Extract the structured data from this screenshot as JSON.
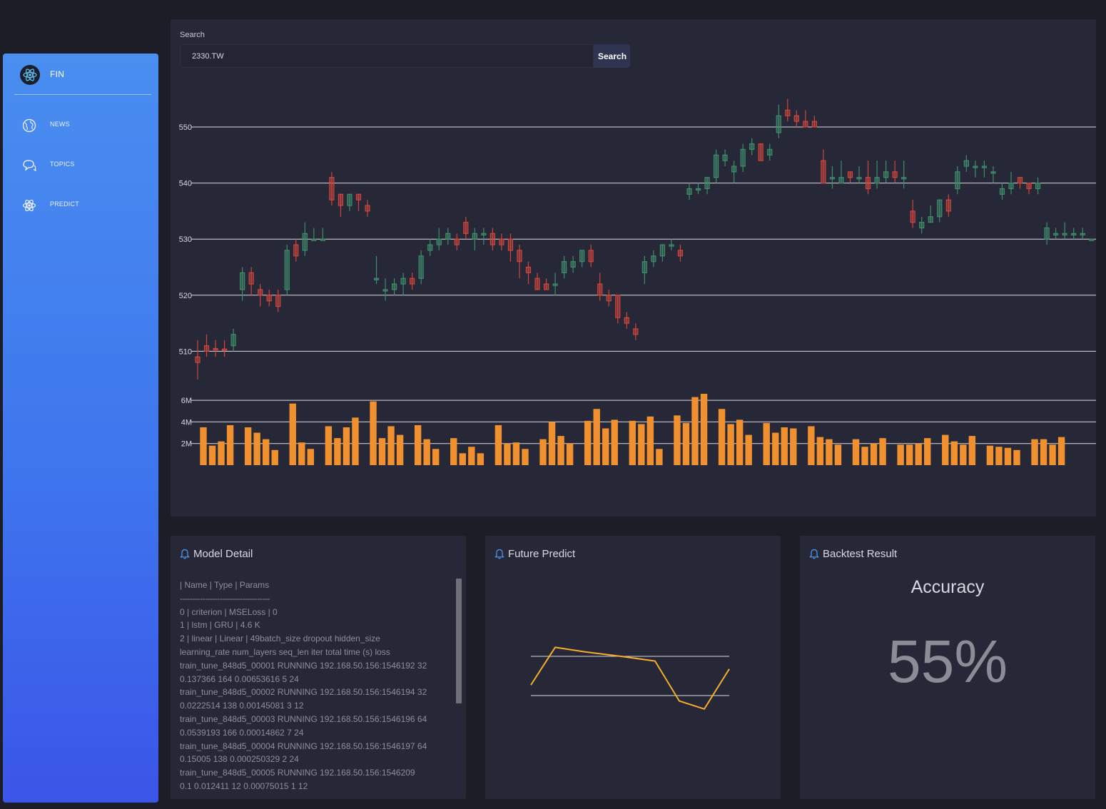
{
  "sidebar": {
    "brand": "FIN",
    "brand_icon": "react-atom-icon",
    "items": [
      {
        "label": "NEWS",
        "icon": "globe-icon"
      },
      {
        "label": "TOPICS",
        "icon": "chat-bubbles-icon"
      },
      {
        "label": "PREDICT",
        "icon": "atom-icon"
      }
    ]
  },
  "search": {
    "label": "Search",
    "value": "2330.TW",
    "button_label": "Search"
  },
  "colors": {
    "up": "#3f8c6a",
    "down": "#d0453c",
    "volume": "#f0902e",
    "predict_line": "#f4ad2c",
    "sidebar_top": "#4a8ef0",
    "sidebar_bottom": "#3b55e8"
  },
  "chart_data": [
    {
      "type": "candlestick",
      "price_ticks": [
        510,
        520,
        530,
        540,
        550
      ],
      "volume_ticks": [
        "2M",
        "4M",
        "6M"
      ],
      "volume_tick_values": [
        2000000,
        4000000,
        6000000
      ],
      "candles": [
        {
          "o": 509,
          "c": 508,
          "h": 512,
          "l": 505
        },
        {
          "o": 511,
          "c": 510,
          "h": 513,
          "l": 509
        },
        {
          "o": 510.5,
          "c": 510.3,
          "h": 512,
          "l": 509
        },
        {
          "o": 510.4,
          "c": 510.3,
          "h": 512,
          "l": 509
        },
        {
          "o": 511,
          "c": 513,
          "h": 514,
          "l": 510
        },
        {
          "o": 521,
          "c": 524,
          "h": 525,
          "l": 519
        },
        {
          "o": 524,
          "c": 522,
          "h": 525,
          "l": 520
        },
        {
          "o": 521,
          "c": 520,
          "h": 522,
          "l": 518
        },
        {
          "o": 520,
          "c": 519,
          "h": 521,
          "l": 518
        },
        {
          "o": 520,
          "c": 518,
          "h": 521,
          "l": 517
        },
        {
          "o": 521,
          "c": 528,
          "h": 529,
          "l": 520
        },
        {
          "o": 529,
          "c": 527,
          "h": 530,
          "l": 526
        },
        {
          "o": 528,
          "c": 531,
          "h": 533,
          "l": 527
        },
        {
          "o": 530,
          "c": 530,
          "h": 532,
          "l": 530
        },
        {
          "o": 530,
          "c": 530,
          "h": 532,
          "l": 530
        },
        {
          "o": 541,
          "c": 537,
          "h": 542,
          "l": 536
        },
        {
          "o": 538,
          "c": 536,
          "h": 538,
          "l": 534
        },
        {
          "o": 536,
          "c": 538,
          "h": 538,
          "l": 535
        },
        {
          "o": 538,
          "c": 537,
          "h": 538,
          "l": 535
        },
        {
          "o": 536,
          "c": 535,
          "h": 537,
          "l": 534
        },
        {
          "o": 523,
          "c": 523,
          "h": 527,
          "l": 522
        },
        {
          "o": 521,
          "c": 521,
          "h": 523,
          "l": 519
        },
        {
          "o": 521,
          "c": 522,
          "h": 523,
          "l": 520
        },
        {
          "o": 522,
          "c": 523,
          "h": 524,
          "l": 520
        },
        {
          "o": 523,
          "c": 522,
          "h": 524,
          "l": 521
        },
        {
          "o": 523,
          "c": 527,
          "h": 528,
          "l": 522
        },
        {
          "o": 528,
          "c": 529,
          "h": 530,
          "l": 527
        },
        {
          "o": 529,
          "c": 530,
          "h": 532,
          "l": 528
        },
        {
          "o": 530,
          "c": 531,
          "h": 532,
          "l": 529
        },
        {
          "o": 530,
          "c": 529,
          "h": 531,
          "l": 528
        },
        {
          "o": 533,
          "c": 531,
          "h": 534,
          "l": 530
        },
        {
          "o": 530,
          "c": 531,
          "h": 532,
          "l": 528
        },
        {
          "o": 531,
          "c": 531,
          "h": 532,
          "l": 529
        },
        {
          "o": 531,
          "c": 529,
          "h": 532,
          "l": 528
        },
        {
          "o": 530,
          "c": 529,
          "h": 531,
          "l": 528
        },
        {
          "o": 530,
          "c": 528,
          "h": 531,
          "l": 526
        },
        {
          "o": 528,
          "c": 526,
          "h": 529,
          "l": 523
        },
        {
          "o": 525,
          "c": 524,
          "h": 526,
          "l": 522
        },
        {
          "o": 523,
          "c": 521,
          "h": 524,
          "l": 521
        },
        {
          "o": 522,
          "c": 521,
          "h": 523,
          "l": 521
        },
        {
          "o": 522,
          "c": 522,
          "h": 524,
          "l": 520
        },
        {
          "o": 524,
          "c": 526,
          "h": 527,
          "l": 523
        },
        {
          "o": 525,
          "c": 526,
          "h": 527,
          "l": 524
        },
        {
          "o": 526,
          "c": 528,
          "h": 528,
          "l": 525
        },
        {
          "o": 528,
          "c": 526,
          "h": 529,
          "l": 525
        },
        {
          "o": 522,
          "c": 520,
          "h": 524,
          "l": 519
        },
        {
          "o": 520,
          "c": 519,
          "h": 521,
          "l": 518
        },
        {
          "o": 520,
          "c": 516,
          "h": 520,
          "l": 515
        },
        {
          "o": 516,
          "c": 515,
          "h": 517,
          "l": 514
        },
        {
          "o": 514,
          "c": 513,
          "h": 515,
          "l": 512
        },
        {
          "o": 524,
          "c": 526,
          "h": 527,
          "l": 522
        },
        {
          "o": 526,
          "c": 527,
          "h": 528,
          "l": 525
        },
        {
          "o": 527,
          "c": 529,
          "h": 529,
          "l": 526
        },
        {
          "o": 529,
          "c": 529,
          "h": 530,
          "l": 528
        },
        {
          "o": 528,
          "c": 527,
          "h": 529,
          "l": 526
        },
        {
          "o": 538,
          "c": 539,
          "h": 540,
          "l": 537
        },
        {
          "o": 539,
          "c": 539,
          "h": 540,
          "l": 538
        },
        {
          "o": 539,
          "c": 541,
          "h": 541,
          "l": 538
        },
        {
          "o": 541,
          "c": 545,
          "h": 546,
          "l": 540
        },
        {
          "o": 544,
          "c": 545,
          "h": 546,
          "l": 543
        },
        {
          "o": 542,
          "c": 543,
          "h": 544,
          "l": 540
        },
        {
          "o": 543,
          "c": 546,
          "h": 547,
          "l": 542
        },
        {
          "o": 546,
          "c": 547,
          "h": 548,
          "l": 545
        },
        {
          "o": 547,
          "c": 544,
          "h": 547,
          "l": 544
        },
        {
          "o": 545,
          "c": 546,
          "h": 547,
          "l": 544
        },
        {
          "o": 549,
          "c": 552,
          "h": 554,
          "l": 548
        },
        {
          "o": 553,
          "c": 552,
          "h": 555,
          "l": 551
        },
        {
          "o": 552,
          "c": 551,
          "h": 553,
          "l": 550
        },
        {
          "o": 551,
          "c": 550,
          "h": 553,
          "l": 550
        },
        {
          "o": 551,
          "c": 550,
          "h": 552,
          "l": 550
        },
        {
          "o": 544,
          "c": 540,
          "h": 546,
          "l": 540
        },
        {
          "o": 541,
          "c": 541,
          "h": 543,
          "l": 539
        },
        {
          "o": 540,
          "c": 541,
          "h": 544,
          "l": 540
        },
        {
          "o": 542,
          "c": 541,
          "h": 542,
          "l": 540
        },
        {
          "o": 541,
          "c": 541,
          "h": 543,
          "l": 540
        },
        {
          "o": 541,
          "c": 539,
          "h": 544,
          "l": 538
        },
        {
          "o": 540,
          "c": 541,
          "h": 544,
          "l": 539
        },
        {
          "o": 541,
          "c": 542,
          "h": 544,
          "l": 540
        },
        {
          "o": 542,
          "c": 541,
          "h": 544,
          "l": 540
        },
        {
          "o": 541,
          "c": 541,
          "h": 544,
          "l": 539
        },
        {
          "o": 535,
          "c": 533,
          "h": 537,
          "l": 532
        },
        {
          "o": 532,
          "c": 533,
          "h": 534,
          "l": 531
        },
        {
          "o": 533,
          "c": 534,
          "h": 536,
          "l": 533
        },
        {
          "o": 534,
          "c": 537,
          "h": 537,
          "l": 533
        },
        {
          "o": 537,
          "c": 535,
          "h": 538,
          "l": 534
        },
        {
          "o": 539,
          "c": 542,
          "h": 543,
          "l": 538
        },
        {
          "o": 543,
          "c": 544,
          "h": 545,
          "l": 542
        },
        {
          "o": 543,
          "c": 543,
          "h": 544,
          "l": 541
        },
        {
          "o": 543,
          "c": 543,
          "h": 544,
          "l": 541
        },
        {
          "o": 542,
          "c": 542,
          "h": 543,
          "l": 540
        },
        {
          "o": 538,
          "c": 539,
          "h": 540,
          "l": 537
        },
        {
          "o": 539,
          "c": 540,
          "h": 542,
          "l": 538
        },
        {
          "o": 541,
          "c": 540,
          "h": 541,
          "l": 539
        },
        {
          "o": 540,
          "c": 539,
          "h": 540,
          "l": 538
        },
        {
          "o": 539,
          "c": 540,
          "h": 541,
          "l": 538
        },
        {
          "o": 530,
          "c": 532,
          "h": 533,
          "l": 529
        },
        {
          "o": 531,
          "c": 531,
          "h": 532,
          "l": 530
        },
        {
          "o": 531,
          "c": 531,
          "h": 533,
          "l": 530
        },
        {
          "o": 531,
          "c": 531,
          "h": 532,
          "l": 530
        },
        {
          "o": 531,
          "c": 531,
          "h": 532,
          "l": 530
        },
        {
          "o": 530,
          "c": 530,
          "h": 530,
          "l": 530
        }
      ],
      "volumes": [
        3.5,
        1.8,
        2.2,
        3.7,
        0,
        3.5,
        3.0,
        2.4,
        1.4,
        0,
        5.7,
        2.1,
        1.5,
        0,
        3.6,
        2.5,
        3.5,
        4.4,
        0,
        5.9,
        2.5,
        3.6,
        2.8,
        0,
        3.7,
        2.4,
        1.5,
        0,
        2.5,
        1.1,
        1.7,
        1.1,
        0,
        3.7,
        2.0,
        2.1,
        1.5,
        0,
        2.4,
        4.0,
        2.7,
        2.0,
        0,
        4.1,
        5.2,
        3.4,
        4.2,
        0,
        4.1,
        3.8,
        4.5,
        1.5,
        0,
        4.6,
        3.9,
        6.3,
        6.6,
        0,
        5.2,
        3.8,
        4.2,
        2.8,
        0,
        3.9,
        3.0,
        3.5,
        3.4,
        0,
        3.6,
        2.6,
        2.4,
        1.9,
        0,
        2.4,
        1.7,
        2.0,
        2.5,
        0,
        1.9,
        1.9,
        2.0,
        2.5,
        0,
        2.8,
        2.2,
        1.9,
        2.7,
        0,
        1.8,
        1.7,
        1.6,
        1.4,
        0,
        2.4,
        2.4,
        1.9,
        2.6
      ]
    },
    {
      "type": "line",
      "values": [
        0.38,
        0.71,
        0.67,
        0.63,
        0.59,
        0.24,
        0.17,
        0.52
      ]
    }
  ],
  "model_detail": {
    "title": "Model Detail",
    "lines": [
      "| Name | Type | Params",
      "------------------------------------",
      "0 | criterion | MSELoss | 0",
      "1 | lstm | GRU | 4.6 K",
      "2 | linear | Linear | 49batch_size dropout hidden_size",
      "learning_rate num_layers seq_len iter total time (s) loss",
      "train_tune_848d5_00001 RUNNING 192.168.50.156:1546192 32",
      "0.137366 164 0.00653616 5 24",
      "train_tune_848d5_00002 RUNNING 192.168.50.156:1546194 32",
      "0.0222514 138 0.00145081 3 12",
      "train_tune_848d5_00003 RUNNING 192.168.50.156:1546196 64",
      "0.0539193 166 0.00014862 7 24",
      "train_tune_848d5_00004 RUNNING 192.168.50.156:1546197 64",
      "0.15005 138 0.000250329 2 24",
      "train_tune_848d5_00005 RUNNING 192.168.50.156:1546209",
      "0.1 0.012411 12 0.00075015 1 12"
    ]
  },
  "future_predict": {
    "title": "Future Predict"
  },
  "backtest": {
    "title": "Backtest Result",
    "label": "Accuracy",
    "value": "55%"
  }
}
